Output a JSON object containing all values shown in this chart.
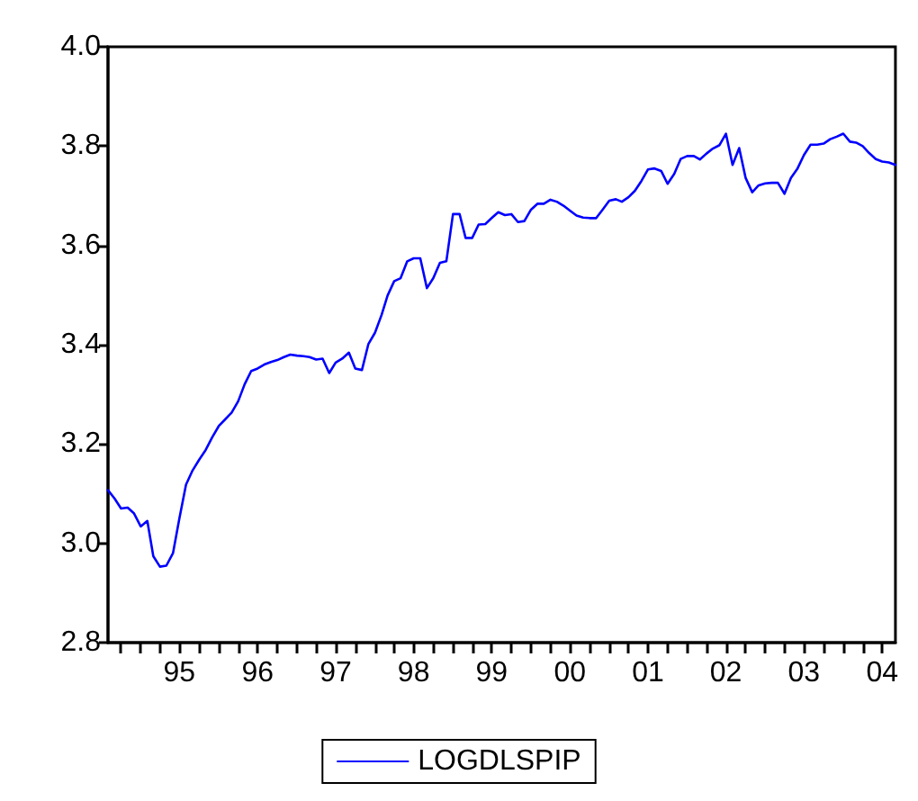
{
  "chart_data": {
    "type": "line",
    "x": [
      "1994-08",
      "1994-09",
      "1994-10",
      "1994-11",
      "1994-12",
      "1995-01",
      "1995-02",
      "1995-03",
      "1995-04",
      "1995-05",
      "1995-06",
      "1995-07",
      "1995-08",
      "1995-09",
      "1995-10",
      "1995-11",
      "1995-12",
      "1996-01",
      "1996-02",
      "1996-03",
      "1996-04",
      "1996-05",
      "1996-06",
      "1996-07",
      "1996-08",
      "1996-09",
      "1996-10",
      "1996-11",
      "1996-12",
      "1997-01",
      "1997-02",
      "1997-03",
      "1997-04",
      "1997-05",
      "1997-06",
      "1997-07",
      "1997-08",
      "1997-09",
      "1997-10",
      "1997-11",
      "1997-12",
      "1998-01",
      "1998-02",
      "1998-03",
      "1998-04",
      "1998-05",
      "1998-06",
      "1998-07",
      "1998-08",
      "1998-09",
      "1998-10",
      "1998-11",
      "1998-12",
      "1999-01",
      "1999-02",
      "1999-03",
      "1999-04",
      "1999-05",
      "1999-06",
      "1999-07",
      "1999-08",
      "1999-09",
      "1999-10",
      "1999-11",
      "1999-12",
      "2000-01",
      "2000-02",
      "2000-03",
      "2000-04",
      "2000-05",
      "2000-06",
      "2000-07",
      "2000-08",
      "2000-09",
      "2000-10",
      "2000-11",
      "2000-12",
      "2001-01",
      "2001-02",
      "2001-03",
      "2001-04",
      "2001-05",
      "2001-06",
      "2001-07",
      "2001-08",
      "2001-09",
      "2001-10",
      "2001-11",
      "2001-12",
      "2002-01",
      "2002-02",
      "2002-03",
      "2002-04",
      "2002-05",
      "2002-06",
      "2002-07",
      "2002-08",
      "2002-09",
      "2002-10",
      "2002-11",
      "2002-12",
      "2003-01",
      "2003-02",
      "2003-03",
      "2003-04",
      "2003-05",
      "2003-06",
      "2003-07",
      "2003-08",
      "2003-09",
      "2003-10",
      "2003-11",
      "2003-12",
      "2004-01",
      "2004-02",
      "2004-03",
      "2004-04",
      "2004-05",
      "2004-06",
      "2004-07",
      "2004-08",
      "2004-09"
    ],
    "series": [
      {
        "name": "LOGDLSPIP",
        "color": "#0000ff",
        "values": [
          3.107,
          3.09,
          3.07,
          3.072,
          3.06,
          3.034,
          3.045,
          2.974,
          2.953,
          2.955,
          2.98,
          3.05,
          3.118,
          3.147,
          3.168,
          3.188,
          3.213,
          3.236,
          3.25,
          3.263,
          3.286,
          3.32,
          3.347,
          3.352,
          3.36,
          3.365,
          3.369,
          3.375,
          3.38,
          3.378,
          3.377,
          3.375,
          3.37,
          3.372,
          3.343,
          3.364,
          3.372,
          3.384,
          3.352,
          3.349,
          3.401,
          3.424,
          3.46,
          3.499,
          3.528,
          3.534,
          3.568,
          3.574,
          3.574,
          3.514,
          3.534,
          3.565,
          3.568,
          3.663,
          3.663,
          3.615,
          3.615,
          3.642,
          3.643,
          3.655,
          3.667,
          3.661,
          3.663,
          3.647,
          3.649,
          3.672,
          3.684,
          3.684,
          3.692,
          3.688,
          3.68,
          3.67,
          3.66,
          3.656,
          3.655,
          3.655,
          3.672,
          3.69,
          3.693,
          3.688,
          3.697,
          3.71,
          3.73,
          3.753,
          3.755,
          3.75,
          3.724,
          3.744,
          3.774,
          3.78,
          3.78,
          3.773,
          3.785,
          3.795,
          3.802,
          3.825,
          3.762,
          3.796,
          3.736,
          3.707,
          3.721,
          3.725,
          3.726,
          3.726,
          3.704,
          3.736,
          3.755,
          3.782,
          3.803,
          3.803,
          3.805,
          3.814,
          3.819,
          3.825,
          3.809,
          3.807,
          3.8,
          3.786,
          3.774,
          3.769,
          3.767,
          3.762
        ]
      }
    ],
    "xlim": [
      "1994-08",
      "2004-09"
    ],
    "xticks": [
      {
        "value": "1994-10",
        "label": null
      },
      {
        "value": "1995-01",
        "label": null
      },
      {
        "value": "1995-04",
        "label": null
      },
      {
        "value": "1995-07",
        "label": "95"
      },
      {
        "value": "1995-10",
        "label": null
      },
      {
        "value": "1996-01",
        "label": null
      },
      {
        "value": "1996-04",
        "label": null
      },
      {
        "value": "1996-07",
        "label": "96"
      },
      {
        "value": "1996-10",
        "label": null
      },
      {
        "value": "1997-01",
        "label": null
      },
      {
        "value": "1997-04",
        "label": null
      },
      {
        "value": "1997-07",
        "label": "97"
      },
      {
        "value": "1997-10",
        "label": null
      },
      {
        "value": "1998-01",
        "label": null
      },
      {
        "value": "1998-04",
        "label": null
      },
      {
        "value": "1998-07",
        "label": "98"
      },
      {
        "value": "1998-10",
        "label": null
      },
      {
        "value": "1999-01",
        "label": null
      },
      {
        "value": "1999-04",
        "label": null
      },
      {
        "value": "1999-07",
        "label": "99"
      },
      {
        "value": "1999-10",
        "label": null
      },
      {
        "value": "2000-01",
        "label": null
      },
      {
        "value": "2000-04",
        "label": null
      },
      {
        "value": "2000-07",
        "label": "00"
      },
      {
        "value": "2000-10",
        "label": null
      },
      {
        "value": "2001-01",
        "label": null
      },
      {
        "value": "2001-04",
        "label": null
      },
      {
        "value": "2001-07",
        "label": "01"
      },
      {
        "value": "2001-10",
        "label": null
      },
      {
        "value": "2002-01",
        "label": null
      },
      {
        "value": "2002-04",
        "label": null
      },
      {
        "value": "2002-07",
        "label": "02"
      },
      {
        "value": "2002-10",
        "label": null
      },
      {
        "value": "2003-01",
        "label": null
      },
      {
        "value": "2003-04",
        "label": null
      },
      {
        "value": "2003-07",
        "label": "03"
      },
      {
        "value": "2003-10",
        "label": null
      },
      {
        "value": "2004-01",
        "label": null
      },
      {
        "value": "2004-04",
        "label": null
      },
      {
        "value": "2004-07",
        "label": "04"
      }
    ],
    "ylim": [
      2.8,
      4.0
    ],
    "yticks": [
      {
        "value": 2.8,
        "label": "2.8"
      },
      {
        "value": 3.0,
        "label": "3.0"
      },
      {
        "value": 3.2,
        "label": "3.2"
      },
      {
        "value": 3.4,
        "label": "3.4"
      },
      {
        "value": 3.6,
        "label": "3.6"
      },
      {
        "value": 3.8,
        "label": "3.8"
      },
      {
        "value": 4.0,
        "label": "4.0"
      }
    ],
    "grid": false,
    "legend": "bottom",
    "marker": "none",
    "line_style": "solid"
  }
}
